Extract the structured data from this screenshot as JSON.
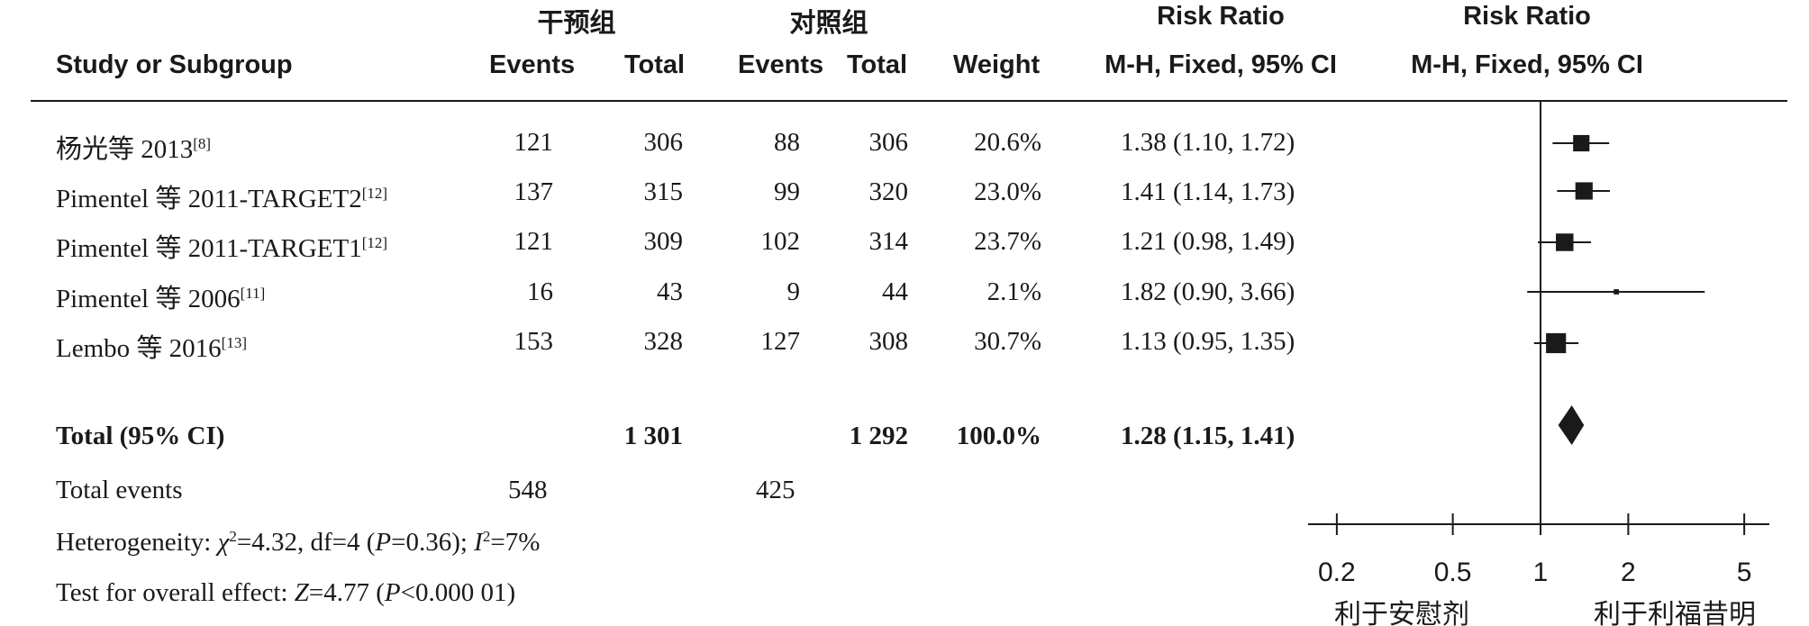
{
  "headers": {
    "group1": "干预组",
    "group2": "对照组",
    "rr_title": "Risk Ratio",
    "plot_title": "Risk Ratio",
    "study": "Study or Subgroup",
    "events1": "Events",
    "total1": "Total",
    "events2": "Events",
    "total2": "Total",
    "weight": "Weight",
    "method": "M-H, Fixed, 95% CI",
    "plot_method": "M-H, Fixed, 95% CI"
  },
  "studies": [
    {
      "name": "杨光等 2013",
      "ref": "[8]",
      "e1": "121",
      "t1": "306",
      "e2": "88",
      "t2": "306",
      "weight": "20.6%",
      "ci": "1.38 (1.10, 1.72)"
    },
    {
      "name": "Pimentel 等 2011-TARGET2",
      "ref": "[12]",
      "e1": "137",
      "t1": "315",
      "e2": "99",
      "t2": "320",
      "weight": "23.0%",
      "ci": "1.41 (1.14, 1.73)"
    },
    {
      "name": "Pimentel 等 2011-TARGET1",
      "ref": "[12]",
      "e1": "121",
      "t1": "309",
      "e2": "102",
      "t2": "314",
      "weight": "23.7%",
      "ci": "1.21 (0.98, 1.49)"
    },
    {
      "name": "Pimentel 等 2006",
      "ref": "[11]",
      "e1": "16",
      "t1": "43",
      "e2": "9",
      "t2": "44",
      "weight": "2.1%",
      "ci": "1.82 (0.90, 3.66)"
    },
    {
      "name": "Lembo 等 2016",
      "ref": "[13]",
      "e1": "153",
      "t1": "328",
      "e2": "127",
      "t2": "308",
      "weight": "30.7%",
      "ci": "1.13 (0.95, 1.35)"
    }
  ],
  "total": {
    "label": "Total (95% CI)",
    "t1": "1 301",
    "t2": "1 292",
    "weight": "100.0%",
    "ci": "1.28 (1.15, 1.41)"
  },
  "total_events": {
    "label": "Total events",
    "e1": "548",
    "e2": "425"
  },
  "footer": {
    "het_prefix": "Heterogeneity: ",
    "het_chi": "χ",
    "het_chi_sup": "2",
    "het_mid": "=4.32, df=4 (",
    "het_p": "P",
    "het_pval": "=0.36); ",
    "het_i": "I",
    "het_i_sup": "2",
    "het_ival": "=7%",
    "test_prefix": "Test for overall effect: ",
    "test_z": "Z",
    "test_zval": "=4.77 (",
    "test_p": "P",
    "test_pval": "<0.000 01)"
  },
  "chart_data": {
    "type": "forest",
    "scale": "log",
    "xlim": [
      0.2,
      5
    ],
    "ticks": [
      0.2,
      0.5,
      1,
      2,
      5
    ],
    "tick_labels": [
      "0.2",
      "0.5",
      "1",
      "2",
      "5"
    ],
    "favours_left": "利于安慰剂",
    "favours_right": "利于利福昔明",
    "points": [
      {
        "rr": 1.38,
        "lo": 1.1,
        "hi": 1.72,
        "weight": 20.6
      },
      {
        "rr": 1.41,
        "lo": 1.14,
        "hi": 1.73,
        "weight": 23.0
      },
      {
        "rr": 1.21,
        "lo": 0.98,
        "hi": 1.49,
        "weight": 23.7
      },
      {
        "rr": 1.82,
        "lo": 0.9,
        "hi": 3.66,
        "weight": 2.1
      },
      {
        "rr": 1.13,
        "lo": 0.95,
        "hi": 1.35,
        "weight": 30.7
      }
    ],
    "pooled": {
      "rr": 1.28,
      "lo": 1.15,
      "hi": 1.41
    }
  }
}
